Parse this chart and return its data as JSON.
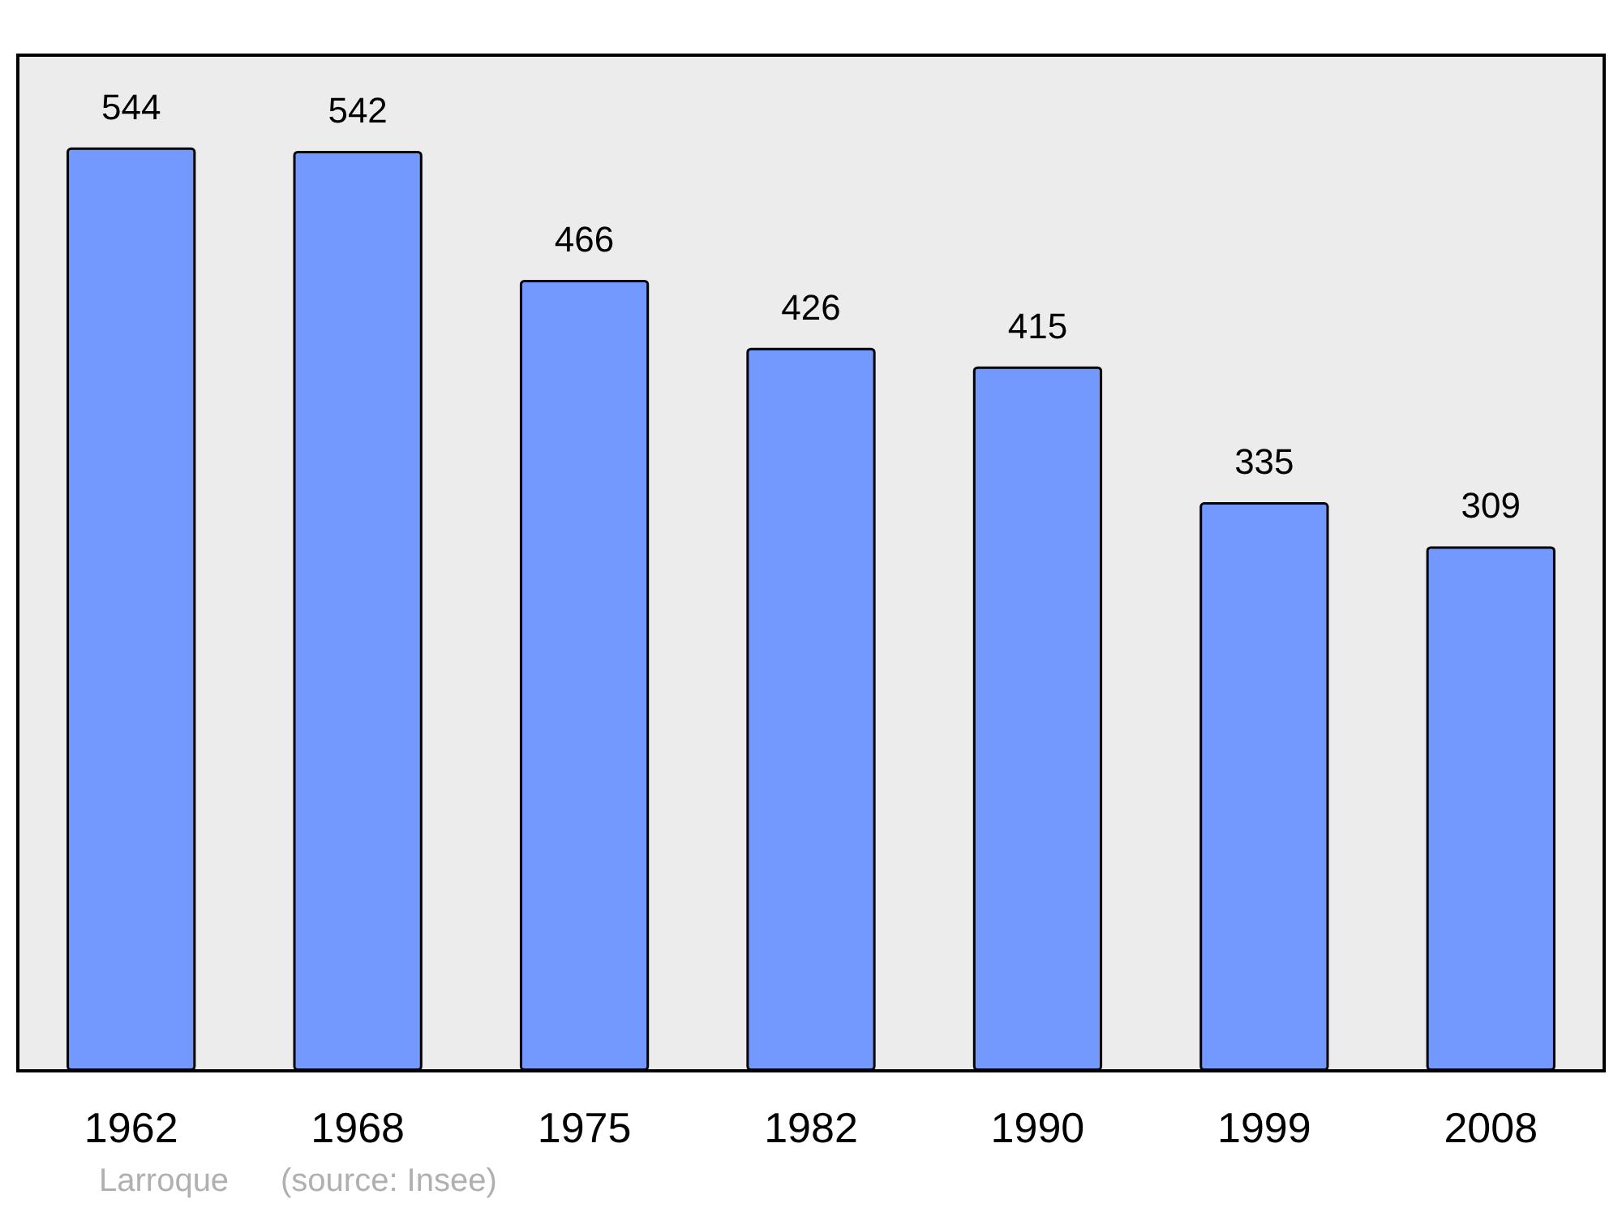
{
  "chart_data": {
    "type": "bar",
    "categories": [
      "1962",
      "1968",
      "1975",
      "1982",
      "1990",
      "1999",
      "2008"
    ],
    "values": [
      544,
      542,
      466,
      426,
      415,
      335,
      309
    ],
    "color": "#7399ff",
    "data_labels": true,
    "annotations": [
      "Larroque",
      "(source: Insee)"
    ]
  }
}
